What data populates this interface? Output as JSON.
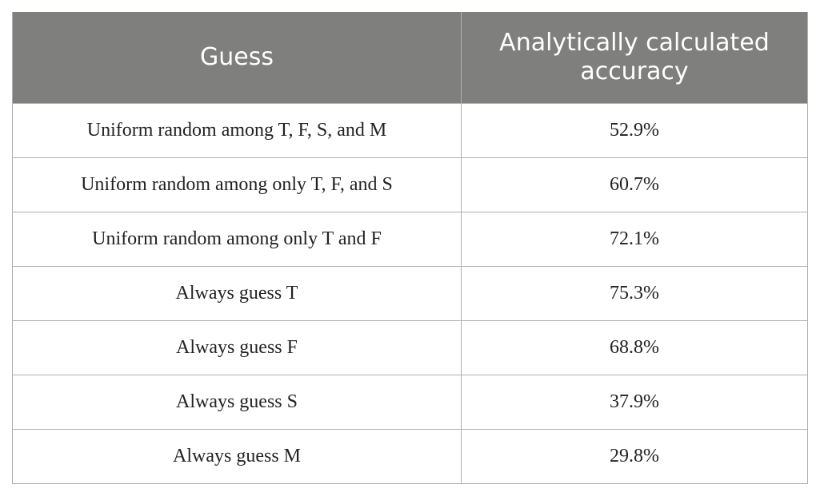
{
  "table": {
    "header": [
      "Guess",
      "Analytically calculated accuracy"
    ],
    "rows": [
      [
        "Uniform random among T, F, S, and M",
        "52.9%"
      ],
      [
        "Uniform random among only T, F, and S",
        "60.7%"
      ],
      [
        "Uniform random among only T and F",
        "72.1%"
      ],
      [
        "Always guess T",
        "75.3%"
      ],
      [
        "Always guess F",
        "68.8%"
      ],
      [
        "Always guess S",
        "37.9%"
      ],
      [
        "Always guess M",
        "29.8%"
      ]
    ]
  }
}
